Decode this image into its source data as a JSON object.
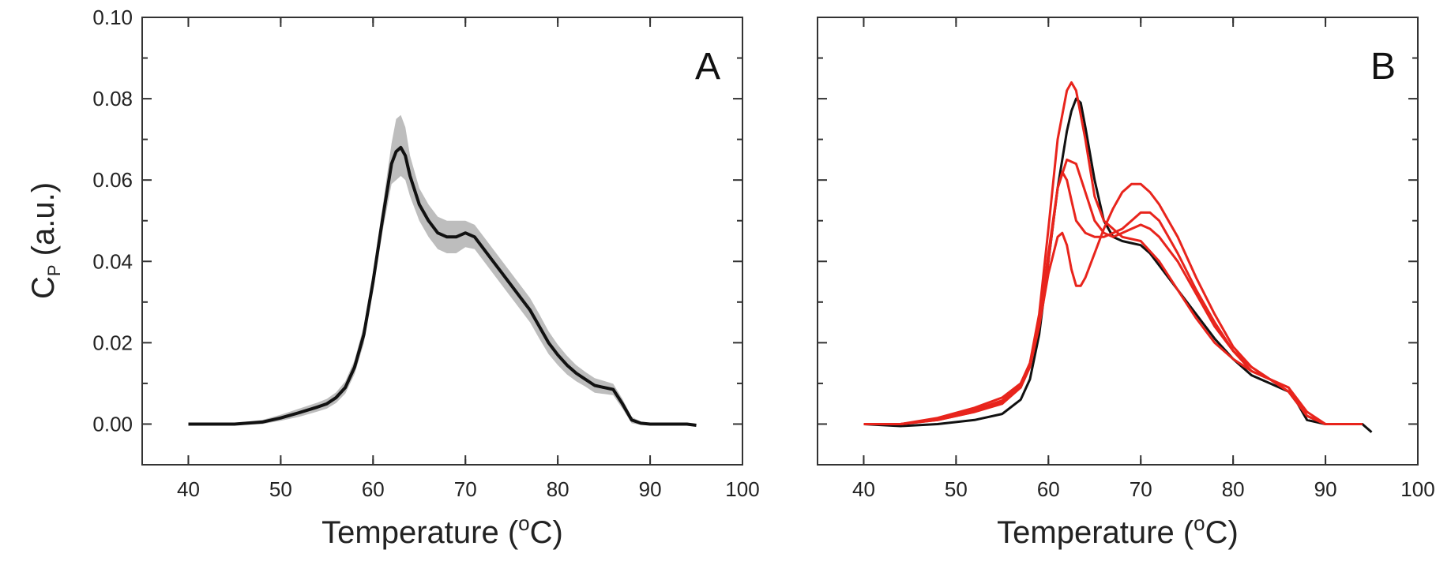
{
  "chart_data": [
    {
      "type": "line",
      "panel_label": "A",
      "xlabel": "Temperature (",
      "xlabel_sup": "o",
      "xlabel_end": "C)",
      "ylabel": "C",
      "ylabel_sub": "P",
      "ylabel_end": " (a.u.)",
      "xlim": [
        35,
        100
      ],
      "ylim": [
        -0.01,
        0.1
      ],
      "xticks": [
        40,
        50,
        60,
        70,
        80,
        90,
        100
      ],
      "yticks": [
        0.0,
        0.02,
        0.04,
        0.06,
        0.08,
        0.1
      ],
      "ytick_labels": [
        "0.00",
        "0.02",
        "0.04",
        "0.06",
        "0.08",
        "0.10"
      ],
      "grid": false,
      "colors": {
        "mean": "#111111",
        "band": "#bdbdbd"
      },
      "series": [
        {
          "x": [
            40,
            45,
            48,
            50,
            52,
            54,
            55,
            56,
            57,
            58,
            59,
            60,
            61,
            62,
            62.5,
            63,
            63.5,
            64,
            65,
            66,
            67,
            68,
            69,
            70,
            71,
            72,
            73,
            74,
            75,
            76,
            77,
            78,
            79,
            80,
            81,
            82,
            83,
            84,
            85,
            86,
            87,
            88,
            89,
            90,
            92,
            94,
            95
          ],
          "y": [
            0.0,
            0.0,
            0.0005,
            0.0015,
            0.0028,
            0.0042,
            0.005,
            0.0065,
            0.009,
            0.014,
            0.022,
            0.035,
            0.05,
            0.064,
            0.067,
            0.068,
            0.066,
            0.061,
            0.054,
            0.05,
            0.047,
            0.046,
            0.046,
            0.047,
            0.046,
            0.043,
            0.04,
            0.037,
            0.034,
            0.031,
            0.028,
            0.024,
            0.02,
            0.017,
            0.0145,
            0.0125,
            0.011,
            0.0095,
            0.009,
            0.0085,
            0.005,
            0.001,
            0.0002,
            0.0,
            0.0,
            0.0,
            -0.0003
          ],
          "band_y_upper": [
            0.0003,
            0.0003,
            0.001,
            0.0023,
            0.0038,
            0.0053,
            0.0062,
            0.0078,
            0.0105,
            0.0157,
            0.0242,
            0.0375,
            0.053,
            0.069,
            0.075,
            0.076,
            0.073,
            0.066,
            0.058,
            0.054,
            0.051,
            0.05,
            0.05,
            0.05,
            0.049,
            0.046,
            0.043,
            0.04,
            0.037,
            0.034,
            0.031,
            0.027,
            0.0228,
            0.0195,
            0.0168,
            0.0145,
            0.0128,
            0.0113,
            0.0106,
            0.0099,
            0.0062,
            0.0018,
            0.0006,
            0.0003,
            0.0003,
            0.0003,
            0.0
          ],
          "band_y_lower": [
            -0.0003,
            -0.0003,
            0.0,
            0.0008,
            0.0018,
            0.0031,
            0.0038,
            0.0052,
            0.0075,
            0.0123,
            0.0198,
            0.0325,
            0.047,
            0.059,
            0.06,
            0.061,
            0.06,
            0.056,
            0.05,
            0.046,
            0.043,
            0.042,
            0.042,
            0.0435,
            0.043,
            0.04,
            0.037,
            0.034,
            0.031,
            0.028,
            0.025,
            0.021,
            0.0172,
            0.0145,
            0.0122,
            0.0105,
            0.0092,
            0.0077,
            0.0074,
            0.0071,
            0.0038,
            0.0002,
            -0.0002,
            -0.0003,
            -0.0003,
            -0.0003,
            -0.0006
          ]
        }
      ]
    },
    {
      "type": "line",
      "panel_label": "B",
      "xlabel": "Temperature (",
      "xlabel_sup": "o",
      "xlabel_end": "C)",
      "xlim": [
        35,
        100
      ],
      "ylim": [
        -0.01,
        0.1
      ],
      "xticks": [
        40,
        50,
        60,
        70,
        80,
        90,
        100
      ],
      "yticks": [
        0.0,
        0.02,
        0.04,
        0.06,
        0.08,
        0.1
      ],
      "grid": false,
      "series": [
        {
          "color": "#111111",
          "x": [
            40,
            44,
            48,
            52,
            55,
            57,
            58,
            59,
            60,
            61,
            62,
            62.5,
            63,
            63.5,
            64,
            65,
            66,
            67,
            68,
            69,
            70,
            71,
            72,
            74,
            76,
            78,
            80,
            82,
            84,
            86,
            87,
            88,
            90,
            92,
            94,
            95
          ],
          "y": [
            0.0,
            -0.0005,
            0.0,
            0.001,
            0.0025,
            0.006,
            0.011,
            0.022,
            0.04,
            0.058,
            0.072,
            0.077,
            0.08,
            0.079,
            0.073,
            0.06,
            0.05,
            0.046,
            0.045,
            0.0445,
            0.044,
            0.042,
            0.039,
            0.033,
            0.027,
            0.021,
            0.016,
            0.012,
            0.01,
            0.008,
            0.005,
            0.001,
            0.0,
            0.0,
            0.0,
            -0.002
          ]
        },
        {
          "color": "#e8241c",
          "x": [
            40,
            44,
            48,
            52,
            55,
            57,
            58,
            59,
            60,
            61,
            62,
            62.5,
            63,
            64,
            65,
            66,
            68,
            70,
            72,
            74,
            76,
            78,
            80,
            82,
            84,
            86,
            88,
            90,
            92,
            94
          ],
          "y": [
            0.0,
            0.0,
            0.001,
            0.003,
            0.0055,
            0.009,
            0.015,
            0.027,
            0.048,
            0.07,
            0.082,
            0.084,
            0.082,
            0.07,
            0.056,
            0.05,
            0.046,
            0.045,
            0.04,
            0.033,
            0.026,
            0.02,
            0.016,
            0.013,
            0.011,
            0.008,
            0.002,
            0.0,
            0.0,
            0.0
          ]
        },
        {
          "color": "#e8241c",
          "x": [
            40,
            44,
            48,
            52,
            55,
            57,
            58,
            59,
            60,
            61,
            61.5,
            62,
            62.5,
            63,
            64,
            65,
            66,
            67,
            68,
            69,
            70,
            71,
            72,
            73,
            74,
            76,
            78,
            80,
            82,
            84,
            86,
            88,
            90,
            92,
            94
          ],
          "y": [
            0.0,
            0.0,
            0.001,
            0.003,
            0.005,
            0.009,
            0.014,
            0.024,
            0.04,
            0.058,
            0.062,
            0.06,
            0.055,
            0.05,
            0.047,
            0.046,
            0.046,
            0.047,
            0.048,
            0.05,
            0.052,
            0.052,
            0.05,
            0.046,
            0.042,
            0.033,
            0.025,
            0.018,
            0.013,
            0.011,
            0.009,
            0.002,
            0.0,
            0.0,
            0.0
          ]
        },
        {
          "color": "#e8241c",
          "x": [
            40,
            44,
            48,
            52,
            55,
            57,
            58,
            59,
            60,
            61,
            61.5,
            62,
            62.5,
            63,
            63.5,
            64,
            65,
            66,
            67,
            68,
            69,
            70,
            71,
            72,
            73,
            74,
            76,
            78,
            80,
            82,
            84,
            86,
            88,
            90,
            92,
            94
          ],
          "y": [
            0.0,
            0.0,
            0.0015,
            0.004,
            0.0065,
            0.01,
            0.015,
            0.024,
            0.037,
            0.046,
            0.047,
            0.044,
            0.038,
            0.034,
            0.034,
            0.036,
            0.042,
            0.048,
            0.053,
            0.057,
            0.059,
            0.059,
            0.057,
            0.054,
            0.05,
            0.046,
            0.036,
            0.027,
            0.019,
            0.014,
            0.011,
            0.009,
            0.003,
            0.0,
            0.0,
            0.0
          ]
        },
        {
          "color": "#e8241c",
          "x": [
            40,
            44,
            48,
            52,
            55,
            57,
            58,
            59,
            60,
            61,
            62,
            63,
            64,
            65,
            66,
            67,
            68,
            69,
            70,
            71,
            72,
            74,
            76,
            78,
            80,
            82,
            84,
            86,
            88,
            90,
            92,
            94
          ],
          "y": [
            0.0,
            0.0,
            0.0012,
            0.0035,
            0.0058,
            0.0095,
            0.0145,
            0.025,
            0.042,
            0.058,
            0.065,
            0.064,
            0.057,
            0.05,
            0.047,
            0.046,
            0.047,
            0.048,
            0.049,
            0.048,
            0.046,
            0.04,
            0.032,
            0.024,
            0.018,
            0.014,
            0.011,
            0.008,
            0.002,
            0.0,
            0.0,
            0.0
          ]
        }
      ]
    }
  ]
}
